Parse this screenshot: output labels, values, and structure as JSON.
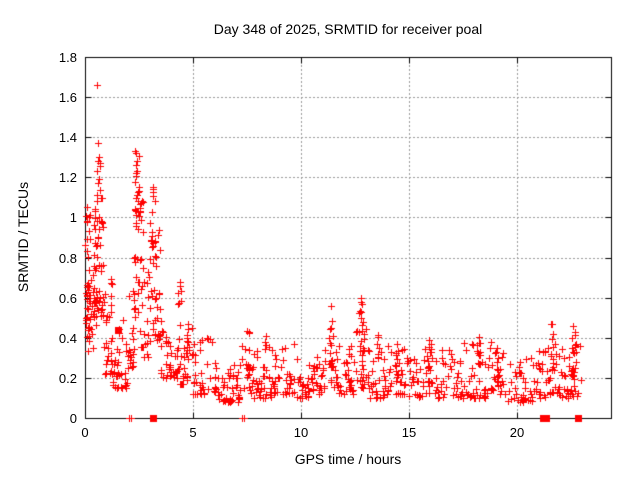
{
  "page": {
    "background": "#ffffff"
  },
  "chart_data": {
    "type": "scatter",
    "title": "Day 348 of 2025, SRMTID for receiver poal",
    "xlabel": "GPS time / hours",
    "ylabel": "SRMTID / TECUs",
    "xlim": [
      0,
      24.35
    ],
    "ylim": [
      0,
      1.8
    ],
    "x_ticks": [
      {
        "v": 0,
        "label": "0"
      },
      {
        "v": 5,
        "label": "5"
      },
      {
        "v": 10,
        "label": "10"
      },
      {
        "v": 15,
        "label": "15"
      },
      {
        "v": 20,
        "label": "20"
      }
    ],
    "y_ticks": [
      {
        "v": 0.0,
        "label": "0"
      },
      {
        "v": 0.2,
        "label": "0.2"
      },
      {
        "v": 0.4,
        "label": "0.4"
      },
      {
        "v": 0.6,
        "label": "0.6"
      },
      {
        "v": 0.8,
        "label": "0.8"
      },
      {
        "v": 1.0,
        "label": "1"
      },
      {
        "v": 1.2,
        "label": "1.2"
      },
      {
        "v": 1.4,
        "label": "1.4"
      },
      {
        "v": 1.6,
        "label": "1.6"
      },
      {
        "v": 1.8,
        "label": "1.8"
      }
    ],
    "grid": {
      "show": true,
      "style": "dashed",
      "color": "#9a9a9a"
    },
    "legend": "none",
    "marker_color": "#ff0000",
    "border_color": "#000000",
    "series_marker": "plus",
    "flag_marker": "filled-square",
    "seed": 348,
    "band_format": "[t_start_h, t_end_h, n_points, value_min, value_max, shape_exponent]",
    "density_bands": [
      [
        0.02,
        0.5,
        60,
        0.45,
        1.05,
        1.5
      ],
      [
        0.02,
        0.45,
        10,
        0.33,
        0.5,
        1.2
      ],
      [
        0.5,
        0.85,
        30,
        0.5,
        1.1,
        1.8
      ],
      [
        0.55,
        0.7,
        14,
        0.75,
        1.3,
        1.2
      ],
      [
        0.85,
        1.25,
        26,
        0.22,
        0.7,
        1.9
      ],
      [
        1.25,
        1.95,
        34,
        0.15,
        0.52,
        1.9
      ],
      [
        1.95,
        2.25,
        16,
        0.25,
        0.62,
        1.7
      ],
      [
        2.2,
        2.7,
        34,
        0.32,
        1.15,
        1.5
      ],
      [
        2.3,
        2.5,
        14,
        0.95,
        1.35,
        1.2
      ],
      [
        2.35,
        2.6,
        8,
        1.0,
        1.16,
        1.0
      ],
      [
        2.7,
        3.05,
        16,
        0.3,
        0.8,
        1.7
      ],
      [
        3.0,
        3.5,
        30,
        0.38,
        1.0,
        1.6
      ],
      [
        3.08,
        3.28,
        12,
        0.7,
        1.15,
        1.2
      ],
      [
        3.5,
        4.25,
        32,
        0.2,
        0.55,
        1.9
      ],
      [
        4.25,
        5.0,
        26,
        0.17,
        0.5,
        1.9
      ],
      [
        4.3,
        4.45,
        8,
        0.35,
        0.67,
        1.3
      ],
      [
        4.7,
        4.85,
        9,
        0.3,
        0.62,
        1.3
      ],
      [
        5.0,
        6.1,
        38,
        0.12,
        0.4,
        1.9
      ],
      [
        6.1,
        7.25,
        42,
        0.08,
        0.27,
        1.7
      ],
      [
        7.25,
        7.9,
        20,
        0.1,
        0.36,
        1.8
      ],
      [
        7.45,
        7.6,
        8,
        0.2,
        0.46,
        1.3
      ],
      [
        7.9,
        8.65,
        26,
        0.1,
        0.36,
        1.9
      ],
      [
        8.25,
        8.4,
        7,
        0.2,
        0.44,
        1.3
      ],
      [
        8.65,
        9.75,
        36,
        0.12,
        0.38,
        1.9
      ],
      [
        9.75,
        10.55,
        28,
        0.1,
        0.3,
        1.8
      ],
      [
        10.55,
        11.2,
        24,
        0.12,
        0.36,
        1.8
      ],
      [
        11.2,
        11.7,
        18,
        0.15,
        0.42,
        1.7
      ],
      [
        11.3,
        11.5,
        12,
        0.25,
        0.56,
        1.3
      ],
      [
        11.7,
        12.45,
        28,
        0.12,
        0.38,
        1.9
      ],
      [
        12.45,
        13.15,
        26,
        0.15,
        0.45,
        1.7
      ],
      [
        12.7,
        12.9,
        13,
        0.25,
        0.6,
        1.3
      ],
      [
        13.15,
        13.95,
        26,
        0.1,
        0.38,
        1.9
      ],
      [
        13.5,
        13.62,
        7,
        0.18,
        0.42,
        1.3
      ],
      [
        13.95,
        14.95,
        30,
        0.12,
        0.4,
        1.9
      ],
      [
        14.35,
        14.5,
        8,
        0.18,
        0.45,
        1.3
      ],
      [
        14.95,
        15.65,
        22,
        0.1,
        0.38,
        1.9
      ],
      [
        15.65,
        16.35,
        24,
        0.12,
        0.4,
        1.9
      ],
      [
        15.9,
        16.0,
        7,
        0.18,
        0.44,
        1.3
      ],
      [
        16.35,
        17.45,
        36,
        0.1,
        0.36,
        1.9
      ],
      [
        17.45,
        18.55,
        36,
        0.1,
        0.38,
        1.9
      ],
      [
        18.15,
        18.3,
        8,
        0.16,
        0.42,
        1.3
      ],
      [
        18.55,
        19.55,
        30,
        0.12,
        0.38,
        1.9
      ],
      [
        19.0,
        19.12,
        6,
        0.16,
        0.4,
        1.3
      ],
      [
        19.55,
        20.75,
        36,
        0.08,
        0.32,
        1.9
      ],
      [
        20.75,
        21.4,
        22,
        0.1,
        0.36,
        1.8
      ],
      [
        21.4,
        21.9,
        18,
        0.12,
        0.4,
        1.8
      ],
      [
        21.55,
        21.7,
        9,
        0.18,
        0.47,
        1.3
      ],
      [
        21.9,
        22.45,
        20,
        0.1,
        0.36,
        1.8
      ],
      [
        22.45,
        22.95,
        22,
        0.1,
        0.42,
        1.7
      ],
      [
        22.55,
        22.7,
        10,
        0.18,
        0.46,
        1.3
      ]
    ],
    "outlier_points": [
      [
        0.56,
        1.66
      ],
      [
        0.6,
        1.37
      ],
      [
        0.63,
        1.3
      ],
      [
        0.57,
        1.23
      ],
      [
        0.08,
        1.05
      ],
      [
        0.2,
        1.0
      ],
      [
        2.33,
        1.33
      ],
      [
        2.42,
        1.28
      ],
      [
        2.38,
        1.22
      ],
      [
        3.15,
        1.15
      ],
      [
        3.22,
        1.08
      ],
      [
        4.38,
        0.68
      ],
      [
        11.38,
        0.56
      ],
      [
        12.78,
        0.6
      ],
      [
        12.82,
        0.57
      ],
      [
        21.62,
        0.47
      ],
      [
        22.6,
        0.46
      ]
    ],
    "axis_plus_points": [
      [
        2.03,
        0
      ],
      [
        2.13,
        0
      ],
      [
        7.28,
        0
      ],
      [
        7.37,
        0
      ]
    ],
    "square_points": [
      [
        1.54,
        0.44
      ],
      [
        3.17,
        0
      ],
      [
        21.2,
        0
      ],
      [
        21.33,
        0
      ],
      [
        22.8,
        0
      ]
    ]
  }
}
